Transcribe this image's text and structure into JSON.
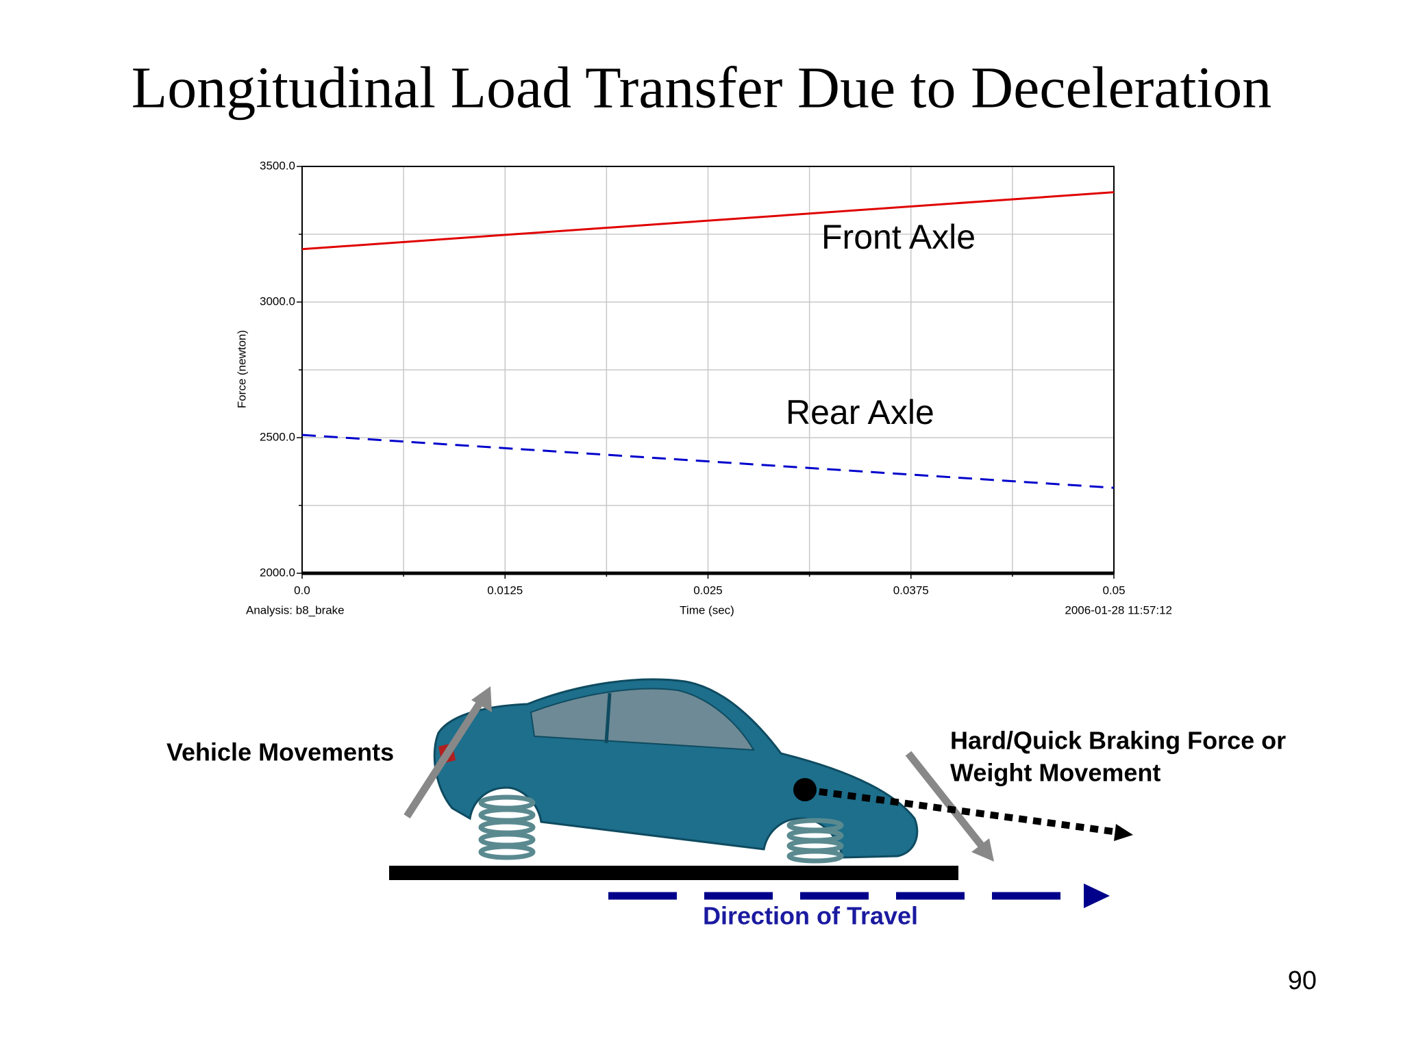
{
  "slide_title": "Longitudinal Load Transfer Due to Deceleration",
  "chart_data": {
    "type": "line",
    "x": [
      0,
      0.05
    ],
    "series": [
      {
        "name": "Front Axle",
        "color": "#e00000",
        "dash": false,
        "values": [
          3195,
          3405
        ]
      },
      {
        "name": "Rear Axle",
        "color": "#0000cc",
        "dash": true,
        "values": [
          2510,
          2315
        ]
      }
    ],
    "xlim": [
      0,
      0.05
    ],
    "ylim": [
      2000,
      3500
    ],
    "xticks": [
      {
        "value": 0,
        "label": "0.0"
      },
      0.0125,
      0.025,
      0.0375,
      0.05
    ],
    "yticks": [
      {
        "value": 2000,
        "label": "2000.0"
      },
      {
        "value": 2500,
        "label": "2500.0"
      },
      {
        "value": 3000,
        "label": "3000.0"
      },
      {
        "value": 3500,
        "label": "3500.0"
      }
    ],
    "xminorticks": [
      0.00625,
      0.01875,
      0.03125,
      0.04375
    ],
    "yminorticks": [
      2250,
      2750,
      3250
    ],
    "grid": true,
    "ylabel": "Force (newton)",
    "xlabel": "Time (sec)",
    "analysis_label": "Analysis:  b8_brake",
    "timestamp": "2006-01-28 11:57:12"
  },
  "diagram": {
    "vehicle_label": "Vehicle Movements",
    "braking_label": [
      "Hard/Quick Braking Force or",
      "Weight Movement"
    ],
    "direction_label": "Direction of Travel"
  },
  "page_number": "90"
}
